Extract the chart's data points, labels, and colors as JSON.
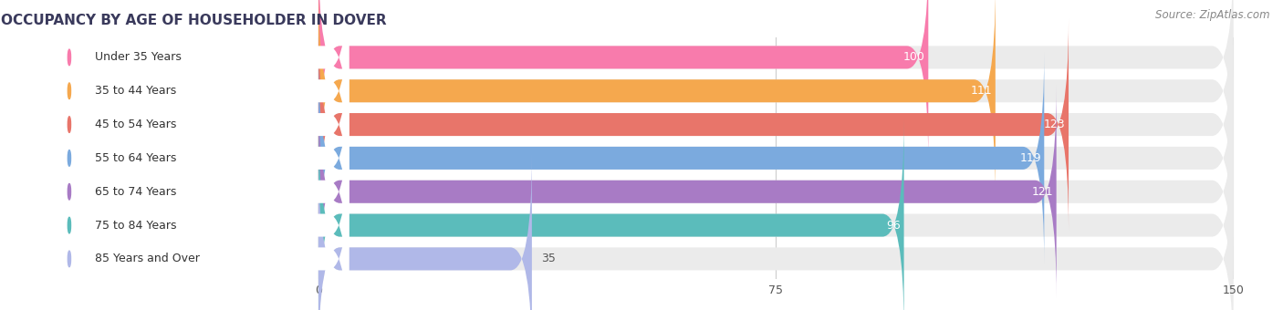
{
  "title": "OCCUPANCY BY AGE OF HOUSEHOLDER IN DOVER",
  "source": "Source: ZipAtlas.com",
  "categories": [
    "Under 35 Years",
    "35 to 44 Years",
    "45 to 54 Years",
    "55 to 64 Years",
    "65 to 74 Years",
    "75 to 84 Years",
    "85 Years and Over"
  ],
  "values": [
    100,
    111,
    123,
    119,
    121,
    96,
    35
  ],
  "bar_colors": [
    "#F87BAC",
    "#F5A84E",
    "#E8756A",
    "#7BAADE",
    "#A87BC5",
    "#5BBCBB",
    "#B0B8E8"
  ],
  "bar_bg_color": "#EBEBEB",
  "fig_bg_color": "#FFFFFF",
  "xlim_data": [
    0,
    150
  ],
  "xlim_plot": [
    -52,
    155
  ],
  "xticks": [
    0,
    75,
    150
  ],
  "value_label_color": "#FFFFFF",
  "value_label_color_outside": "#555555",
  "title_fontsize": 11,
  "source_fontsize": 8.5,
  "bar_label_fontsize": 9,
  "value_fontsize": 9,
  "figsize": [
    14.06,
    3.4
  ],
  "dpi": 100,
  "bar_height": 0.68,
  "rounding_size": 3.5
}
